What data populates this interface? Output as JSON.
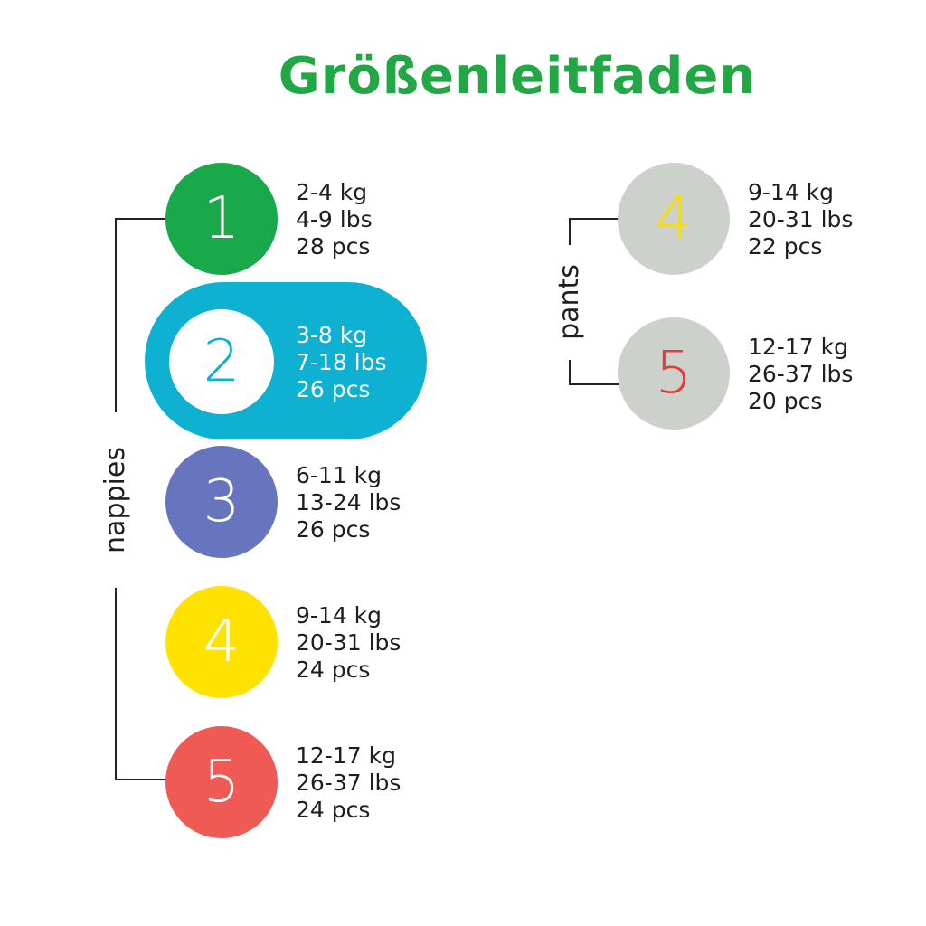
{
  "title": "Größenleitfaden",
  "nappies": {
    "label": "nappies",
    "sizes": [
      {
        "number": "1",
        "kg": "2-4 kg",
        "lbs": "4-9 lbs",
        "pcs": "28 pcs",
        "color": "#19a84a",
        "digit_color": "#ffffff"
      },
      {
        "number": "2",
        "kg": "3-8 kg",
        "lbs": "7-18 lbs",
        "pcs": "26 pcs",
        "color": "#ffffff",
        "digit_color": "#0fb1d2",
        "highlight": "#0fb1d2"
      },
      {
        "number": "3",
        "kg": "6-11 kg",
        "lbs": "13-24 lbs",
        "pcs": "26 pcs",
        "color": "#6675bd",
        "digit_color": "#ffffff"
      },
      {
        "number": "4",
        "kg": "9-14 kg",
        "lbs": "20-31 lbs",
        "pcs": "24 pcs",
        "color": "#ffe200",
        "digit_color": "#ffffff"
      },
      {
        "number": "5",
        "kg": "12-17 kg",
        "lbs": "26-37 lbs",
        "pcs": "24 pcs",
        "color": "#ef5a55",
        "digit_color": "#ffffff"
      }
    ]
  },
  "pants": {
    "label": "pants",
    "sizes": [
      {
        "number": "4",
        "kg": "9-14 kg",
        "lbs": "20-31 lbs",
        "pcs": "22 pcs",
        "color": "#cdd1cc",
        "digit_color": "#f5dc0a"
      },
      {
        "number": "5",
        "kg": "12-17 kg",
        "lbs": "26-37 lbs",
        "pcs": "20 pcs",
        "color": "#cdd1cc",
        "digit_color": "#e53b3b"
      }
    ]
  }
}
